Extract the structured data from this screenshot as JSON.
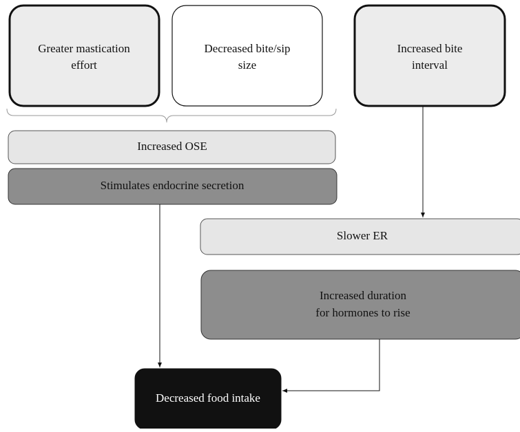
{
  "nodes": [
    {
      "label": [
        "Greater mastication",
        "effort"
      ]
    },
    {
      "label": [
        "Decreased bite/sip",
        "size"
      ]
    },
    {
      "label": [
        "Increased bite",
        "interval"
      ]
    },
    {
      "label": [
        "Increased OSE"
      ]
    },
    {
      "label": [
        "Stimulates endocrine secretion"
      ]
    },
    {
      "label": [
        "Slower ER"
      ]
    },
    {
      "label": [
        "Increased duration",
        "for hormones to rise"
      ]
    },
    {
      "label": [
        "Decreased food intake"
      ]
    }
  ]
}
